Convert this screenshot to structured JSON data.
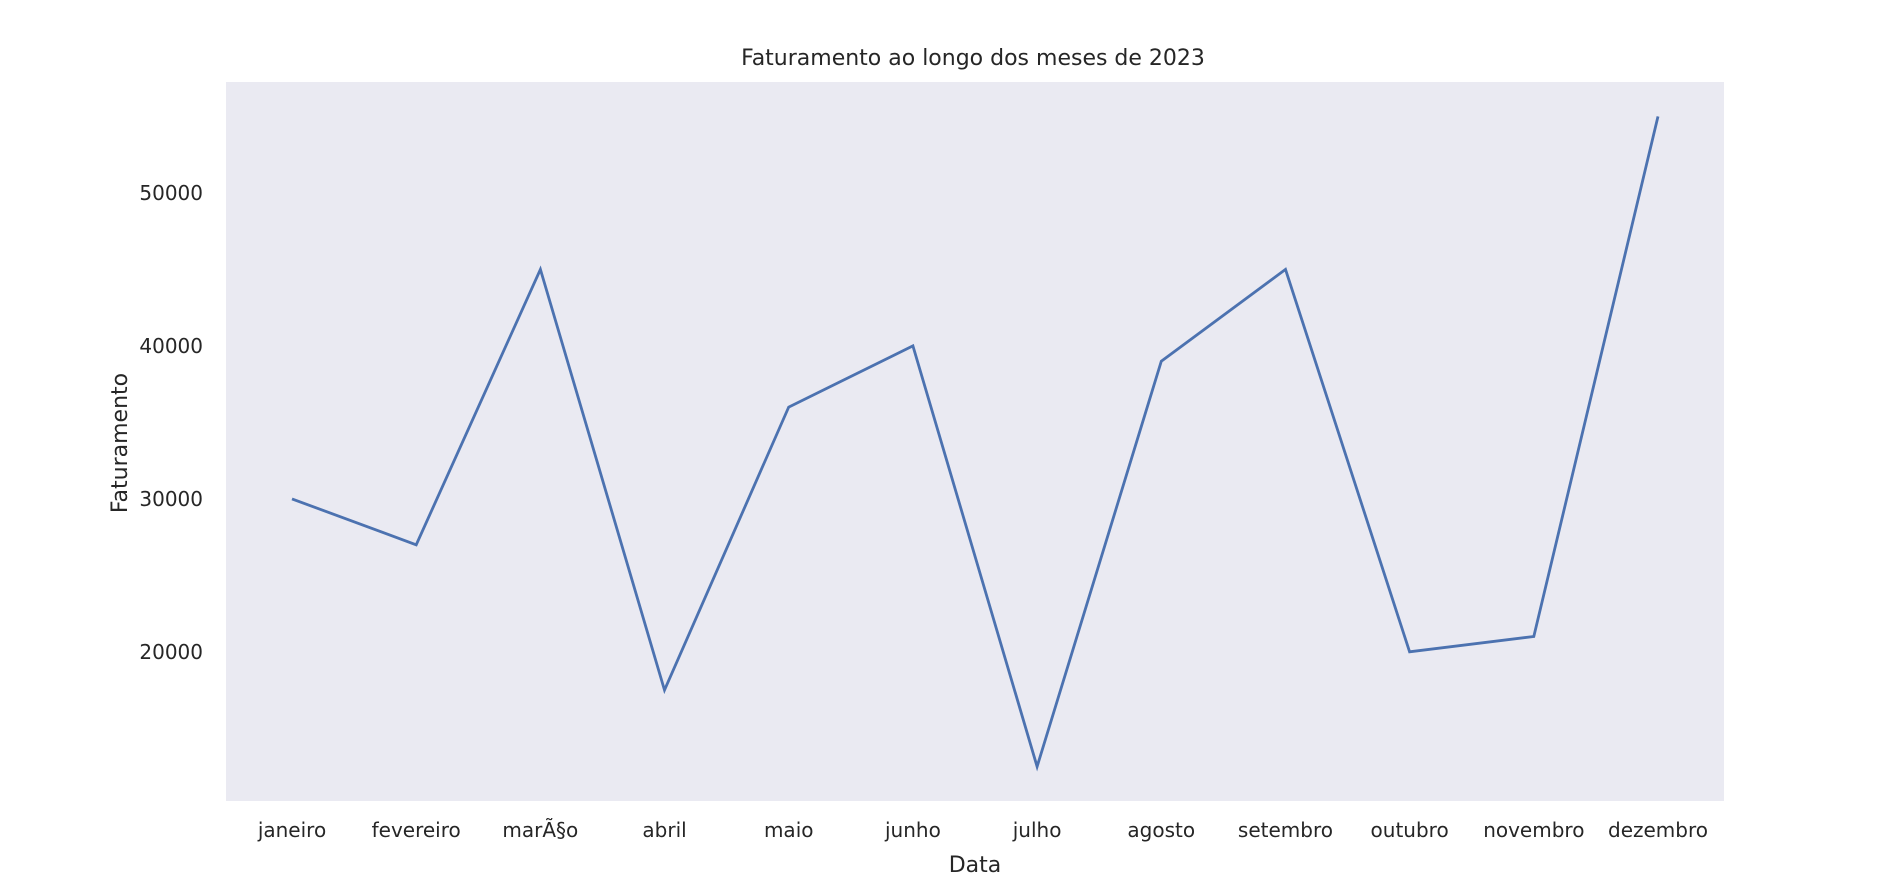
{
  "chart_data": {
    "type": "line",
    "title": "Faturamento ao longo dos meses de 2023",
    "xlabel": "Data",
    "ylabel": "Faturamento",
    "categories": [
      "janeiro",
      "fevereiro",
      "marÃ§o",
      "abril",
      "maio",
      "junho",
      "julho",
      "agosto",
      "setembro",
      "outubro",
      "novembro",
      "dezembro"
    ],
    "series": [
      {
        "values": [
          30000,
          27000,
          45000,
          17500,
          36000,
          40000,
          12500,
          39000,
          45000,
          20000,
          21000,
          55000
        ]
      }
    ],
    "ylim": [
      10250,
      57250
    ],
    "yticks": [
      20000,
      30000,
      40000,
      50000
    ],
    "grid": false,
    "colors": {
      "background": "#eaeaf2",
      "line": "#4c72b0"
    }
  }
}
